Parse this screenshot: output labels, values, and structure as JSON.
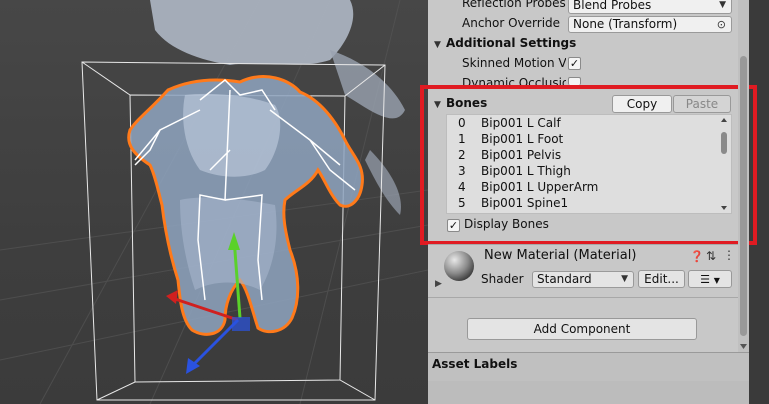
{
  "inspector": {
    "reflection_probes": {
      "label": "Reflection Probes",
      "value": "Blend Probes"
    },
    "anchor_override": {
      "label": "Anchor Override",
      "value": "None (Transform)"
    },
    "additional_settings": {
      "title": "Additional Settings",
      "skinned_motion_vectors": {
        "label": "Skinned Motion Ve",
        "checked": true
      },
      "dynamic_occlusion": {
        "label": "Dynamic Occlusion",
        "checked": true
      }
    },
    "bones": {
      "title": "Bones",
      "copy_label": "Copy",
      "paste_label": "Paste",
      "items": [
        {
          "index": "0",
          "name": "Bip001 L Calf"
        },
        {
          "index": "1",
          "name": "Bip001 L Foot"
        },
        {
          "index": "2",
          "name": "Bip001 Pelvis"
        },
        {
          "index": "3",
          "name": "Bip001 L Thigh"
        },
        {
          "index": "4",
          "name": "Bip001 L UpperArm"
        },
        {
          "index": "5",
          "name": "Bip001 Spine1"
        }
      ],
      "display_bones": {
        "label": "Display Bones",
        "checked": true
      }
    },
    "material": {
      "title": "New Material (Material)",
      "shader_label": "Shader",
      "shader_value": "Standard",
      "edit_label": "Edit..."
    },
    "add_component_label": "Add Component",
    "asset_labels_title": "Asset Labels"
  },
  "colors": {
    "highlight": "#e01b22",
    "inspector_bg": "#c8c8c8",
    "selection_outline": "#ff7a1a",
    "axis_x": "#d0201f",
    "axis_y": "#5ad12a",
    "axis_z": "#2a52e0"
  }
}
